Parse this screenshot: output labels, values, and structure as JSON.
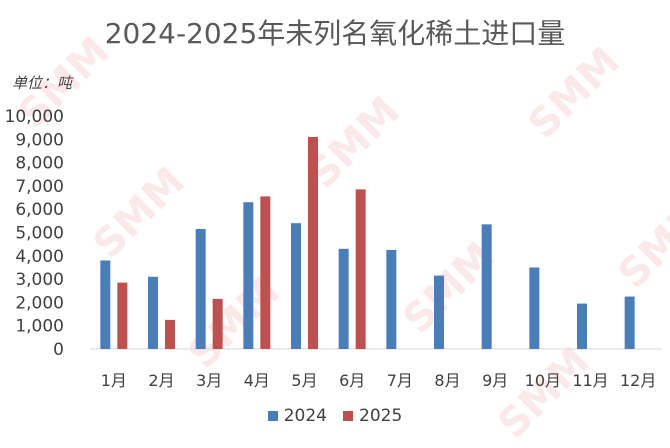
{
  "chart_data": {
    "type": "bar",
    "title": "2024-2025年未列名氧化稀土进口量",
    "unit_label": "单位：吨",
    "categories": [
      "1月",
      "2月",
      "3月",
      "4月",
      "5月",
      "6月",
      "7月",
      "8月",
      "9月",
      "10月",
      "11月",
      "12月"
    ],
    "series": [
      {
        "name": "2024",
        "color": "#4a7ebb",
        "values": [
          3800,
          3100,
          5150,
          6300,
          5400,
          4300,
          4250,
          3150,
          5350,
          3500,
          1950,
          2250
        ]
      },
      {
        "name": "2025",
        "color": "#c0504d",
        "values": [
          2850,
          1250,
          2150,
          6550,
          9100,
          6850,
          null,
          null,
          null,
          null,
          null,
          null
        ]
      }
    ],
    "ylim": [
      0,
      10000
    ],
    "yticks": [
      "0",
      "1,000",
      "2,000",
      "3,000",
      "4,000",
      "5,000",
      "6,000",
      "7,000",
      "8,000",
      "9,000",
      "10,000"
    ],
    "grid": false,
    "legend_position": "bottom"
  },
  "watermark": "SMM"
}
